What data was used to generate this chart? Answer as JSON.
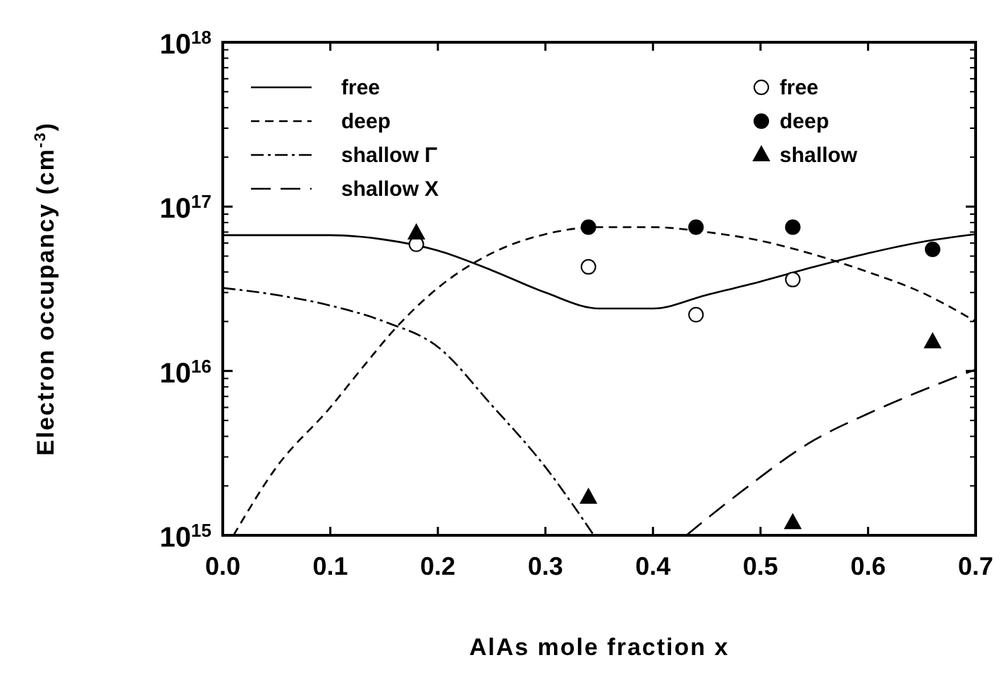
{
  "chart_data": {
    "type": "line",
    "xlabel": "AlAs mole fraction x",
    "ylabel": "Electron occupancy (cm$^{-3}$)",
    "log": "y",
    "xlim": [
      0,
      0.7
    ],
    "xticks": [
      {
        "value": 0,
        "label": "0.0"
      },
      0.1,
      0.2,
      0.3,
      0.4,
      0.5,
      0.6,
      0.7
    ],
    "ylim": [
      1000000000000000.0,
      1e+18
    ],
    "yticks": [
      {
        "value": 1000000000000000.0,
        "label": "10$^{15}$"
      },
      {
        "value": 1e+16,
        "label": "10$^{16}$"
      },
      {
        "value": 1e+17,
        "label": "10$^{17}$"
      },
      {
        "value": 1e+18,
        "label": "10$^{18}$"
      }
    ],
    "grid": false,
    "legend": "top",
    "series": [
      {
        "name": "free",
        "line_style": "solid",
        "color": "#000000",
        "x": [
          0,
          0.1,
          0.15,
          0.2,
          0.25,
          0.3,
          0.35,
          0.4,
          0.45,
          0.5,
          0.55,
          0.6,
          0.65,
          0.7
        ],
        "values": [
          6.7e+16,
          6.7e+16,
          6.3e+16,
          5.4e+16,
          4.1e+16,
          3e+16,
          2.4e+16,
          2.4e+16,
          2.9e+16,
          3.5e+16,
          4.3e+16,
          5.2e+16,
          6.1e+16,
          6.8e+16
        ]
      },
      {
        "name": "deep",
        "line_style": "dashed",
        "color": "#000000",
        "x": [
          0.01,
          0.05,
          0.1,
          0.13,
          0.16,
          0.2,
          0.25,
          0.3,
          0.35,
          0.4,
          0.45,
          0.5,
          0.55,
          0.6,
          0.65,
          0.7
        ],
        "values": [
          1000000000000000.0,
          2600000000000000.0,
          6000000000000000.0,
          1.05e+16,
          1.8e+16,
          3.2e+16,
          5.2e+16,
          6.8e+16,
          7.5e+16,
          7.5e+16,
          7e+16,
          6.2e+16,
          5.1e+16,
          4e+16,
          3e+16,
          2e+16
        ]
      },
      {
        "name": "shallow Γ",
        "line_style": "dashdot",
        "color": "#000000",
        "x": [
          0,
          0.05,
          0.1,
          0.15,
          0.2,
          0.25,
          0.3,
          0.345
        ],
        "values": [
          3.2e+16,
          2.9e+16,
          2.5e+16,
          2e+16,
          1.4e+16,
          6200000000000000.0,
          2600000000000000.0,
          1000000000000000.0
        ]
      },
      {
        "name": "shallow X",
        "line_style": "longdash",
        "color": "#000000",
        "x": [
          0.431,
          0.48,
          0.55,
          0.6,
          0.65,
          0.7
        ],
        "values": [
          1000000000000000.0,
          1800000000000000.0,
          3800000000000000.0,
          5500000000000000.0,
          7600000000000000.0,
          1.02e+16
        ]
      },
      {
        "name": "free",
        "type": "scatter",
        "marker": "circle",
        "color": "#ffffff",
        "x": [
          0.18,
          0.34,
          0.44,
          0.53
        ],
        "values": [
          5.9e+16,
          4.3e+16,
          2.2e+16,
          3.6e+16
        ]
      },
      {
        "name": "deep",
        "type": "scatter",
        "marker": "circle",
        "color": "#000000",
        "x": [
          0.34,
          0.44,
          0.53,
          0.66
        ],
        "values": [
          7.5e+16,
          7.5e+16,
          7.5e+16,
          5.5e+16
        ]
      },
      {
        "name": "shallow",
        "type": "scatter",
        "marker": "triangle",
        "color": "#000000",
        "x": [
          0.18,
          0.34,
          0.53,
          0.66
        ],
        "values": [
          6.9e+16,
          1700000000000000.0,
          1190000000000000.0,
          1.5e+16
        ]
      }
    ]
  }
}
